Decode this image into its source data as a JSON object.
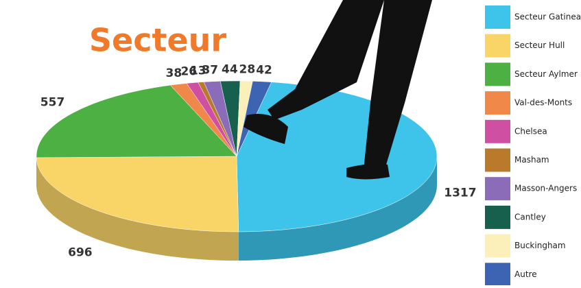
{
  "chart_data": {
    "type": "pie",
    "title": "Secteur",
    "categories": [
      "Secteur Gatineau",
      "Secteur Hull",
      "Secteur Aylmer",
      "Val-des-Monts",
      "Chelsea",
      "Masham",
      "Masson-Angers",
      "Cantley",
      "Buckingham",
      "Autre"
    ],
    "values": [
      1317,
      696,
      557,
      38,
      26,
      13,
      37,
      44,
      28,
      42
    ],
    "colors": [
      "#3ec3ea",
      "#f9d466",
      "#4cb043",
      "#f0884a",
      "#cf4fa2",
      "#b97b2b",
      "#8b6cb8",
      "#17604e",
      "#fbefba",
      "#3d64b2"
    ]
  }
}
